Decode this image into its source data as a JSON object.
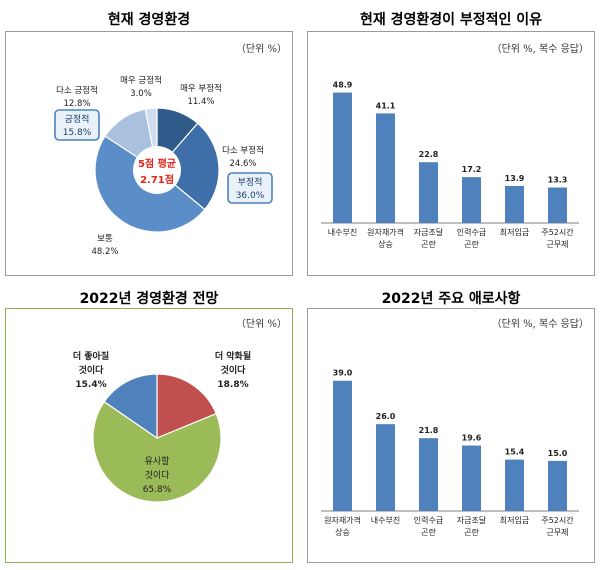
{
  "chart_data": [
    {
      "type": "pie",
      "title": "현재 경영환경",
      "unit": "（단위 %）",
      "slices": [
        {
          "label": "매우 부정적",
          "value": 11.4,
          "color": "#2f5a8a"
        },
        {
          "label": "다소 부정적",
          "value": 24.6,
          "color": "#3f6fa8"
        },
        {
          "label": "보통",
          "value": 48.2,
          "color": "#5b8dc9"
        },
        {
          "label": "다소 긍정적",
          "value": 12.8,
          "color": "#a9c0de"
        },
        {
          "label": "매우 긍정적",
          "value": 3.0,
          "color": "#cfdcee"
        }
      ],
      "group_boxes": [
        {
          "label": "긍정적",
          "value": "15.8%"
        },
        {
          "label": "부정적",
          "value": "36.0%"
        }
      ],
      "center_label": [
        "5점 평균",
        "2.71점"
      ]
    },
    {
      "type": "bar",
      "title": "현재 경영환경이 부정적인 이유",
      "unit": "（단위 %, 복수 응답）",
      "categories": [
        "내수부진",
        "원자재가격 상승",
        "자금조달 곤란",
        "인력수급 곤란",
        "최저임금",
        "주52시간 근무제"
      ],
      "values": [
        48.9,
        41.1,
        22.8,
        17.2,
        13.9,
        13.3
      ],
      "ylim": [
        0,
        60
      ],
      "color": "#4f81bd"
    },
    {
      "type": "pie",
      "title": "2022년 경영환경 전망",
      "unit": "（단위 %）",
      "slices": [
        {
          "label": "더 악화될 것이다",
          "value": 18.8,
          "color": "#c0504d"
        },
        {
          "label": "유사할 것이다",
          "value": 65.8,
          "color": "#9bbb59"
        },
        {
          "label": "더 좋아질 것이다",
          "value": 15.4,
          "color": "#4f81bd"
        }
      ]
    },
    {
      "type": "bar",
      "title": "2022년 주요 애로사항",
      "unit": "（단위 %, 복수 응답）",
      "categories": [
        "원자재가격 상승",
        "내수부진",
        "인력수급 곤란",
        "자금조달 곤란",
        "최저임금",
        "주52시간 근무제"
      ],
      "values": [
        39.0,
        26.0,
        21.8,
        19.6,
        15.4,
        15.0
      ],
      "ylim": [
        0,
        50
      ],
      "color": "#4f81bd"
    }
  ]
}
